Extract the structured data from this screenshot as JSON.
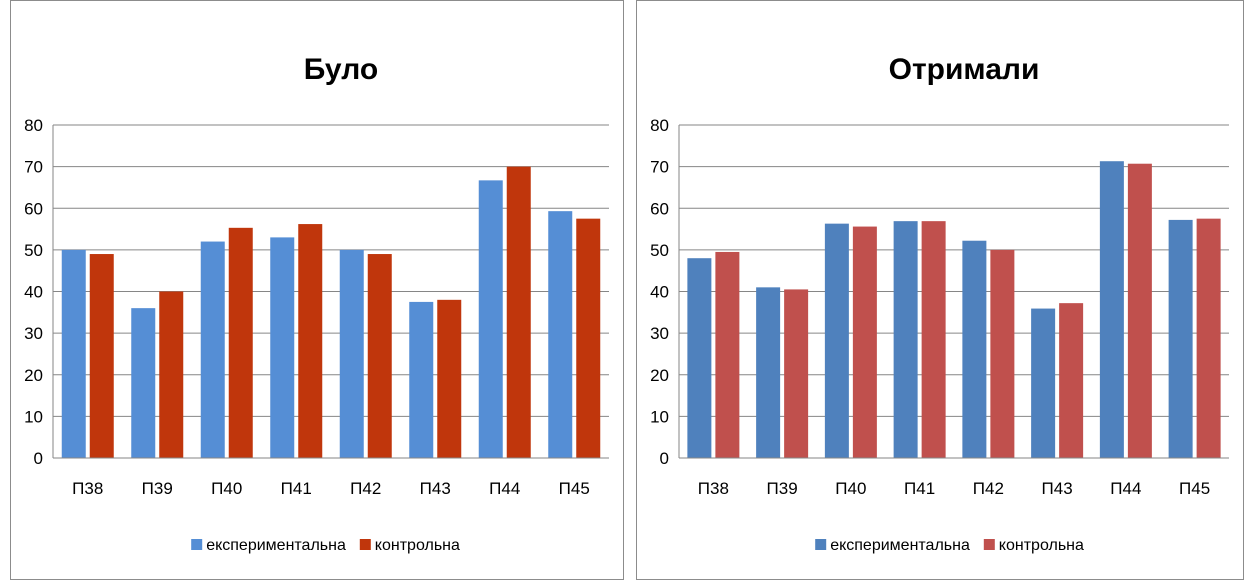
{
  "chart_data": [
    {
      "type": "bar",
      "title": "Було",
      "xlabel": "",
      "ylabel": "",
      "categories": [
        "П38",
        "П39",
        "П40",
        "П41",
        "П42",
        "П43",
        "П44",
        "П45"
      ],
      "series": [
        {
          "name": "експериментальна",
          "color": "#558ED5",
          "values": [
            50,
            36,
            52,
            53,
            50,
            37.5,
            66.7,
            59.3
          ]
        },
        {
          "name": "контрольна",
          "color": "#C0360C",
          "values": [
            49,
            40,
            55.3,
            56.2,
            49,
            38,
            70,
            57.5
          ]
        }
      ],
      "ylim": [
        0,
        80
      ],
      "yticks": [
        0,
        10,
        20,
        30,
        40,
        50,
        60,
        70,
        80
      ],
      "grid": true,
      "legend": "bottom"
    },
    {
      "type": "bar",
      "title": "Отримали",
      "xlabel": "",
      "ylabel": "",
      "categories": [
        "П38",
        "П39",
        "П40",
        "П41",
        "П42",
        "П43",
        "П44",
        "П45"
      ],
      "series": [
        {
          "name": "експериментальна",
          "color": "#4F81BD",
          "values": [
            48,
            41,
            56.3,
            56.9,
            52.2,
            35.9,
            71.3,
            57.2
          ]
        },
        {
          "name": "контрольна",
          "color": "#C0504D",
          "values": [
            49.5,
            40.5,
            55.6,
            56.9,
            50,
            37.2,
            70.7,
            57.5
          ]
        }
      ],
      "ylim": [
        0,
        80
      ],
      "yticks": [
        0,
        10,
        20,
        30,
        40,
        50,
        60,
        70,
        80
      ],
      "grid": true,
      "legend": "bottom"
    }
  ]
}
